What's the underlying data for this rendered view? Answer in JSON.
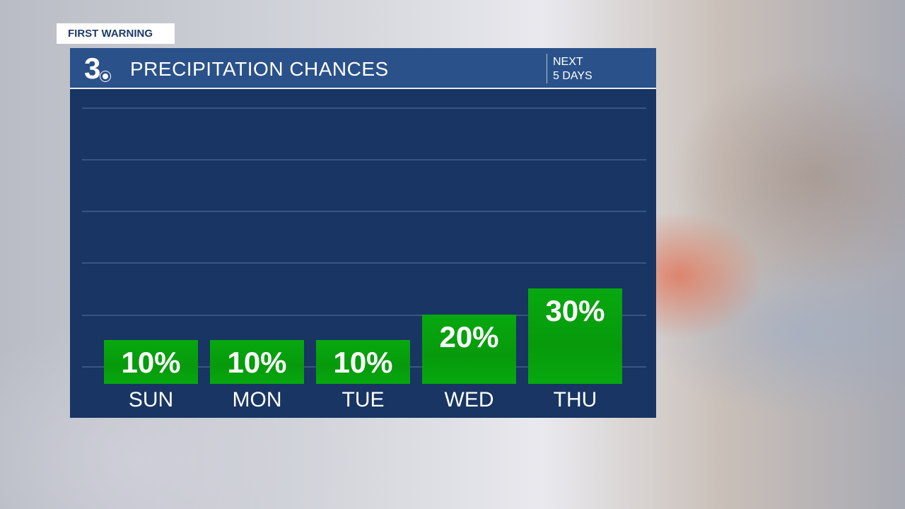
{
  "tag": "FIRST WARNING",
  "header": {
    "logo": "3",
    "title": "PRECIPITATION CHANCES",
    "sub_line1": "NEXT",
    "sub_line2": "5 DAYS"
  },
  "colors": {
    "panel": "#183563",
    "header": "#2a5189",
    "bar": "#07a80f"
  },
  "chart_data": {
    "type": "bar",
    "title": "PRECIPITATION CHANCES",
    "categories": [
      "SUN",
      "MON",
      "TUE",
      "WED",
      "THU"
    ],
    "values": [
      10,
      10,
      10,
      20,
      30
    ],
    "labels": [
      "10%",
      "10%",
      "10%",
      "20%",
      "30%"
    ],
    "unit": "%",
    "grid": true
  }
}
